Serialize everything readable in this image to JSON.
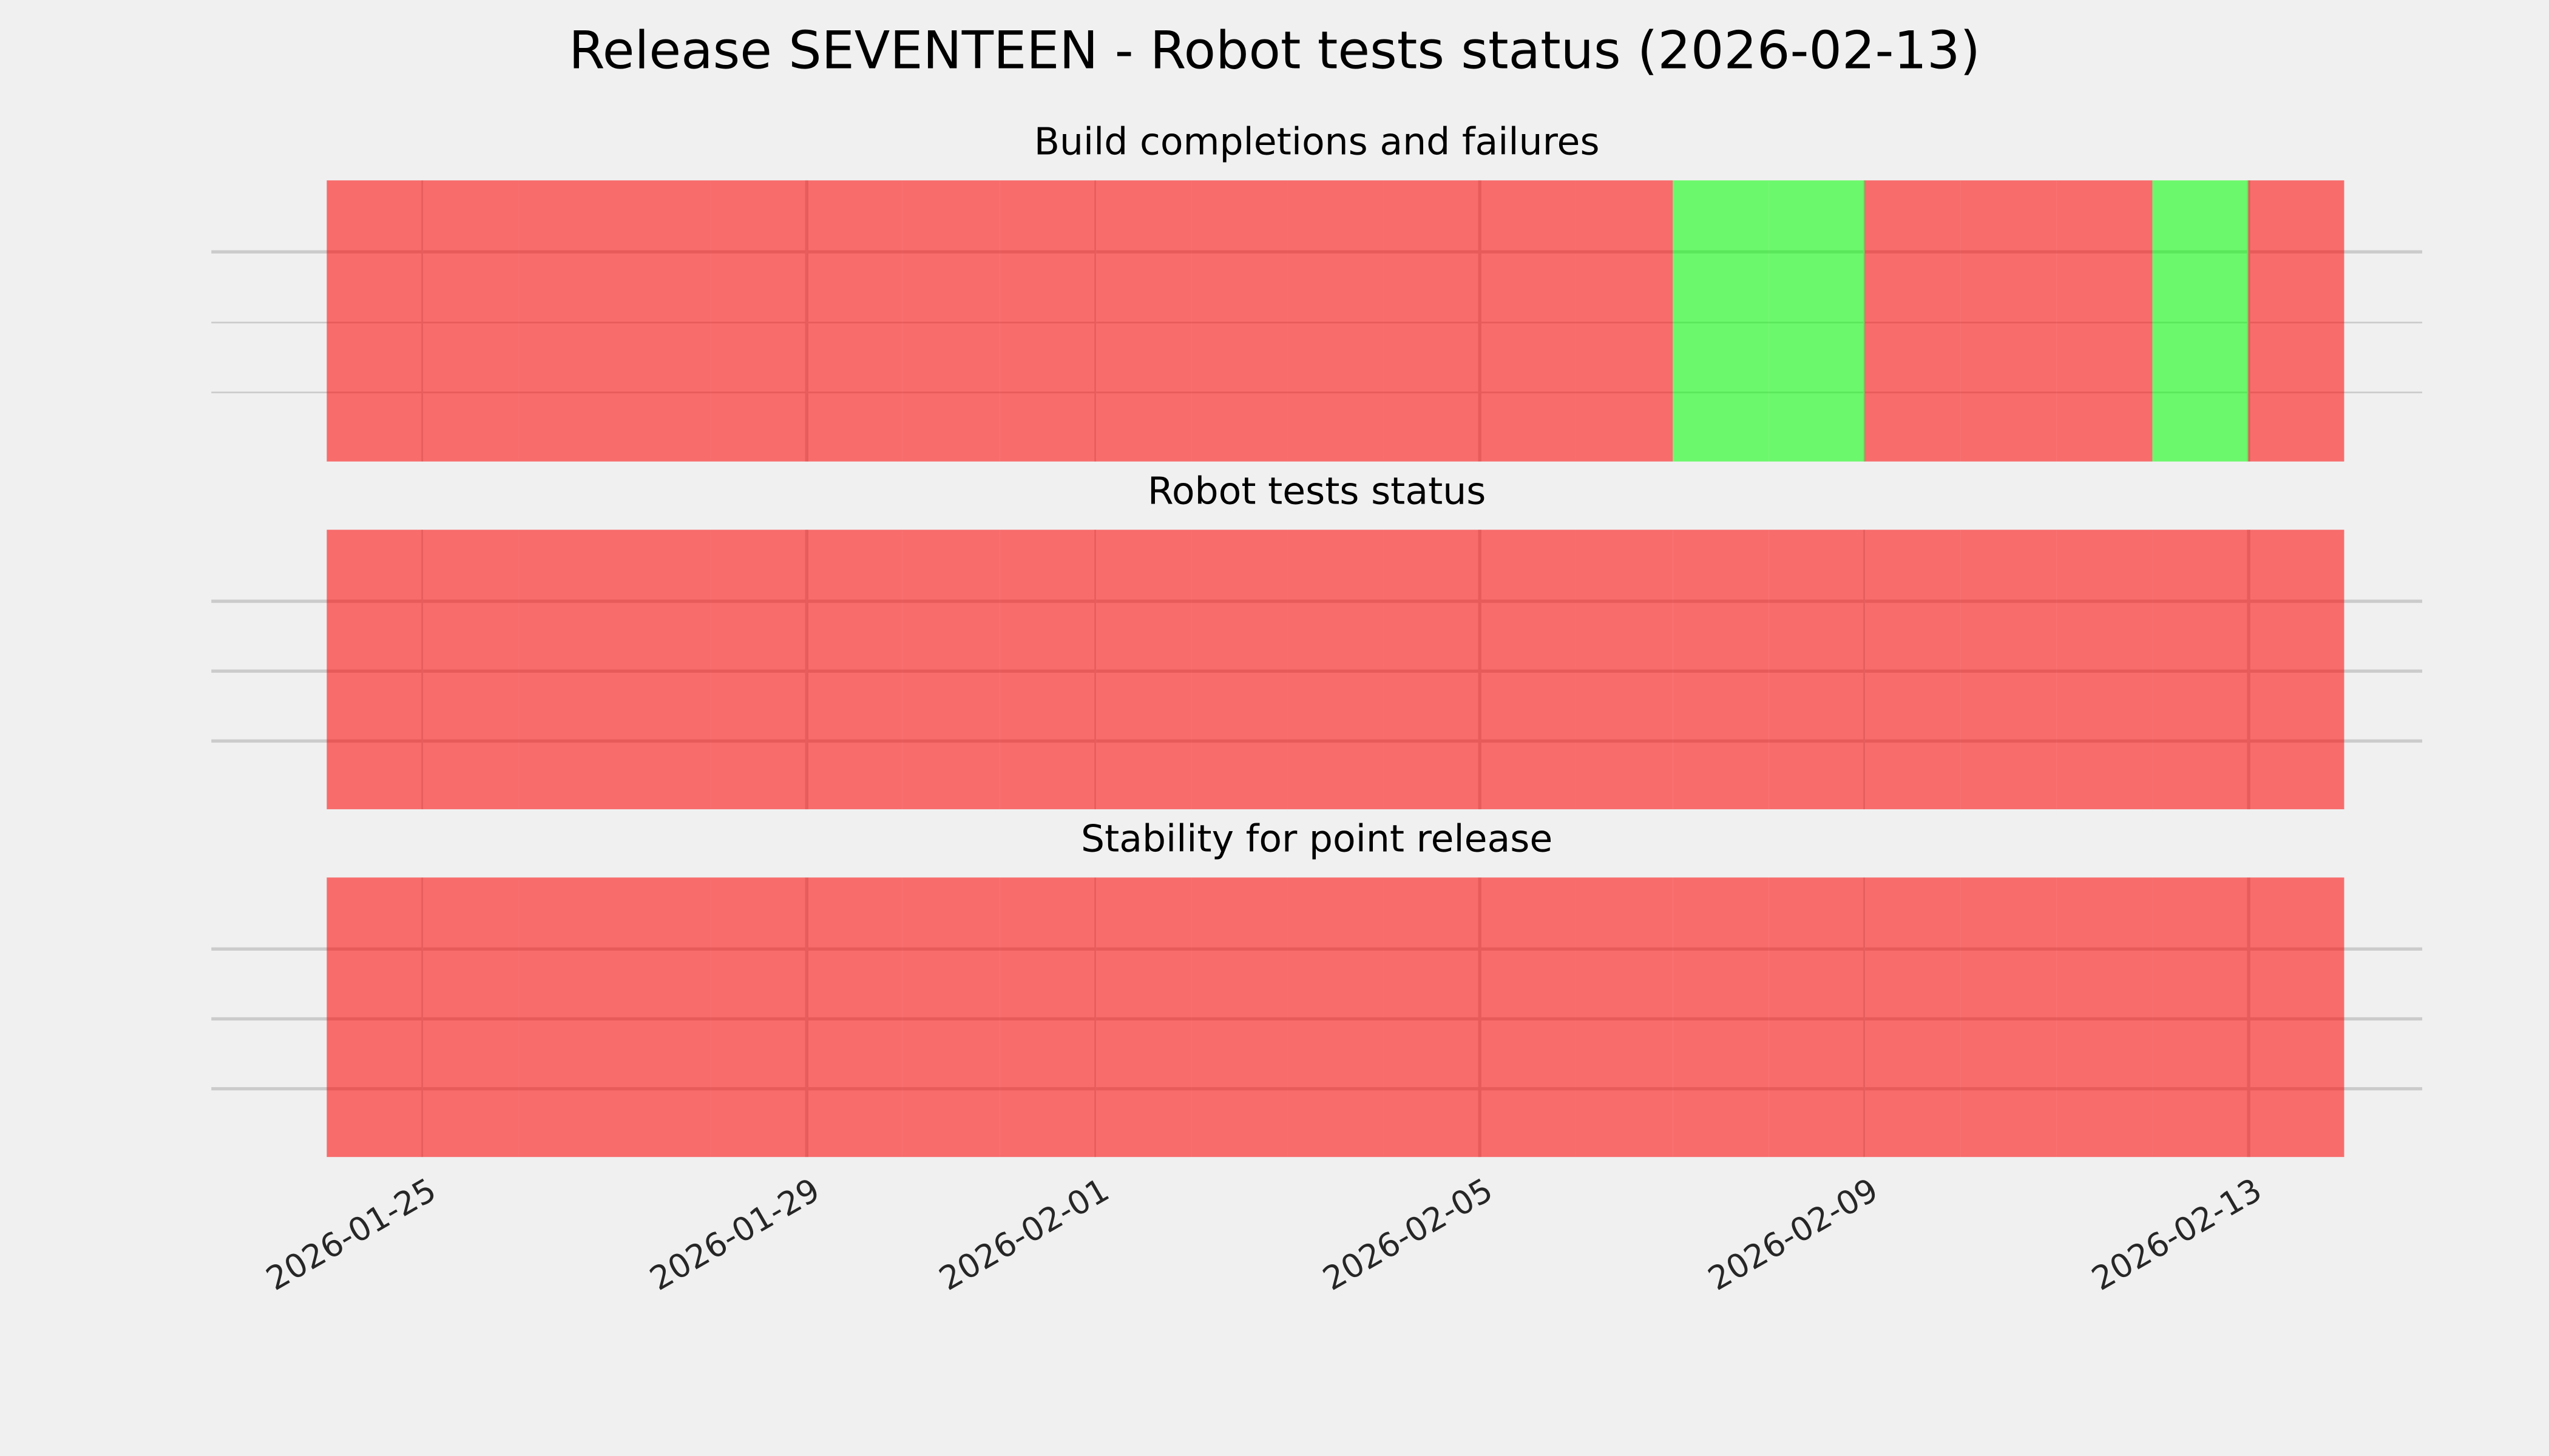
{
  "figure": {
    "background": "#f0f0f0"
  },
  "layout": {
    "strip_left_pct": 5.2,
    "strip_right_pct": 96.5,
    "h_gridlines": 3,
    "tick_rotation_deg": -30,
    "grid": true,
    "legend": "none"
  },
  "colors": {
    "background": "#f0f0f0",
    "grid": "#cbcbcb",
    "fail": "rgba(255, 0, 0, 0.55)",
    "pass": "rgba(0, 255, 0, 0.55)",
    "fail_flat": "#f86c6c",
    "pass_flat": "#6cf86c",
    "title_text": "#000000",
    "tick_text": "#262626"
  },
  "chart_data": {
    "type": "status-timeline",
    "title": "Release SEVENTEEN - Robot tests status (2026-02-13)",
    "categories": [
      "2026-01-24",
      "2026-01-25",
      "2026-01-26",
      "2026-01-27",
      "2026-01-28",
      "2026-01-29",
      "2026-01-30",
      "2026-01-31",
      "2026-02-01",
      "2026-02-02",
      "2026-02-03",
      "2026-02-04",
      "2026-02-05",
      "2026-02-06",
      "2026-02-07",
      "2026-02-08",
      "2026-02-09",
      "2026-02-10",
      "2026-02-11",
      "2026-02-12",
      "2026-02-13"
    ],
    "x_tick_labels": [
      "2026-01-25",
      "2026-01-29",
      "2026-02-01",
      "2026-02-05",
      "2026-02-09",
      "2026-02-13"
    ],
    "series": [
      {
        "name": "Build completions and failures",
        "values": [
          "fail",
          "fail",
          "fail",
          "fail",
          "fail",
          "fail",
          "fail",
          "fail",
          "fail",
          "fail",
          "fail",
          "fail",
          "fail",
          "fail",
          "pass",
          "pass",
          "fail",
          "fail",
          "fail",
          "pass",
          "fail"
        ]
      },
      {
        "name": "Robot tests status",
        "values": [
          "fail",
          "fail",
          "fail",
          "fail",
          "fail",
          "fail",
          "fail",
          "fail",
          "fail",
          "fail",
          "fail",
          "fail",
          "fail",
          "fail",
          "fail",
          "fail",
          "fail",
          "fail",
          "fail",
          "fail",
          "fail"
        ]
      },
      {
        "name": "Stability for point release",
        "values": [
          "fail",
          "fail",
          "fail",
          "fail",
          "fail",
          "fail",
          "fail",
          "fail",
          "fail",
          "fail",
          "fail",
          "fail",
          "fail",
          "fail",
          "fail",
          "fail",
          "fail",
          "fail",
          "fail",
          "fail",
          "fail"
        ]
      }
    ]
  }
}
